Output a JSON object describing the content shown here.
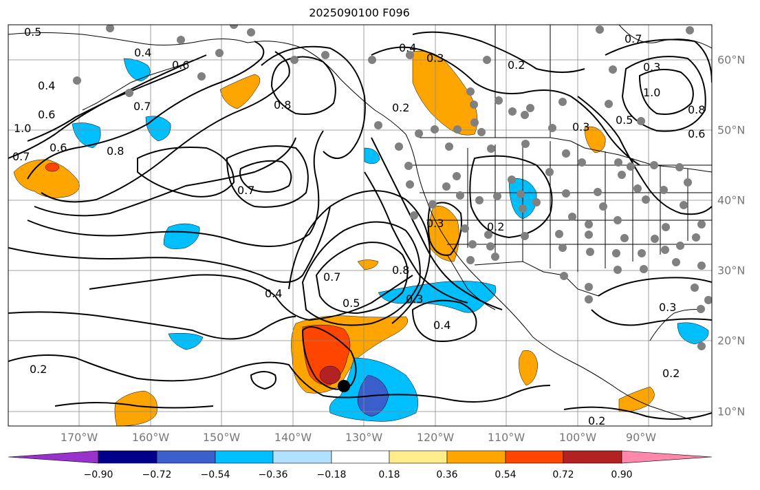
{
  "title": "2025090100 F096",
  "longitude_labels": [
    "170°W",
    "160°W",
    "150°W",
    "140°W",
    "130°W",
    "120°W",
    "110°W",
    "100°W",
    "90°W"
  ],
  "latitude_labels": [
    "60°N",
    "50°N",
    "40°N",
    "30°N",
    "20°N",
    "10°N"
  ],
  "colorbar": {
    "ticks": [
      "−0.90",
      "−0.72",
      "−0.54",
      "−0.36",
      "−0.18",
      "0.18",
      "0.36",
      "0.54",
      "0.72",
      "0.90"
    ],
    "colors": [
      "#9932cc",
      "#00008b",
      "#3a5fcd",
      "#00bfff",
      "#b0e2ff",
      "#ffffff",
      "#ffec8b",
      "#ffa500",
      "#ff4500",
      "#b22222",
      "#ff88aa"
    ]
  },
  "contour_labels": [
    "0.5",
    "0.4",
    "0.6",
    "0.7",
    "0.4",
    "0.6",
    "0.8",
    "1.0",
    "0.7",
    "0.6",
    "0.8",
    "0.7",
    "0.7",
    "0.4",
    "0.5",
    "0.3",
    "0.4",
    "0.8",
    "0.2",
    "0.4",
    "0.3",
    "0.2",
    "0.3",
    "0.2",
    "0.3",
    "0.2",
    "0.5",
    "0.7",
    "1.0",
    "0.8",
    "0.6",
    "0.3",
    "0.2",
    "0.2",
    "0.3"
  ],
  "storm_marker": "current storm position"
}
